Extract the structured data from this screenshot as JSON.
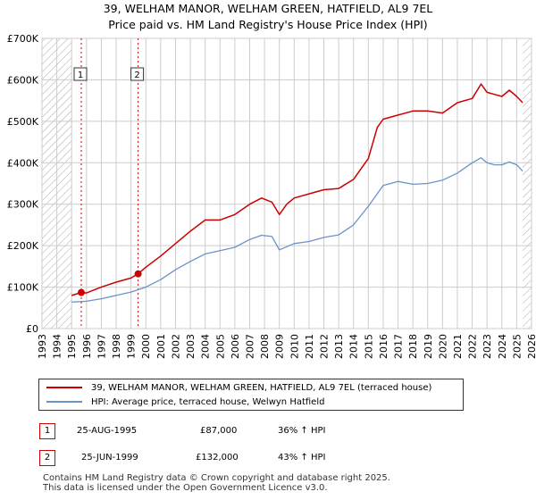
{
  "title_line1": "39, WELHAM MANOR, WELHAM GREEN, HATFIELD, AL9 7EL",
  "title_line2": "Price paid vs. HM Land Registry's House Price Index (HPI)",
  "colors": {
    "price": "#cc0000",
    "hpi": "#6a93c8",
    "grid": "#cccccc",
    "hatch": "#aaaaaa"
  },
  "legend": {
    "price_label": "39, WELHAM MANOR, WELHAM GREEN, HATFIELD, AL9 7EL (terraced house)",
    "hpi_label": "HPI: Average price, terraced house, Welwyn Hatfield"
  },
  "transactions": [
    {
      "num": "1",
      "date": "25-AUG-1995",
      "price": "£87,000",
      "hpi_change": "36% ↑ HPI"
    },
    {
      "num": "2",
      "date": "25-JUN-1999",
      "price": "£132,000",
      "hpi_change": "43% ↑ HPI"
    }
  ],
  "footer_line1": "Contains HM Land Registry data © Crown copyright and database right 2025.",
  "footer_line2": "This data is licensed under the Open Government Licence v3.0.",
  "chart_data": {
    "type": "line",
    "title": "39, WELHAM MANOR, WELHAM GREEN, HATFIELD, AL9 7EL — Price paid vs. HM Land Registry's House Price Index (HPI)",
    "xlabel": "",
    "ylabel": "",
    "xlim": [
      1993,
      2026
    ],
    "ylim": [
      0,
      700000
    ],
    "x_ticks": [
      1993,
      1994,
      1995,
      1996,
      1997,
      1998,
      1999,
      2000,
      2001,
      2002,
      2003,
      2004,
      2005,
      2006,
      2007,
      2008,
      2009,
      2010,
      2011,
      2012,
      2013,
      2014,
      2015,
      2016,
      2017,
      2018,
      2019,
      2020,
      2021,
      2022,
      2023,
      2024,
      2025,
      2026
    ],
    "y_ticks": [
      0,
      100000,
      200000,
      300000,
      400000,
      500000,
      600000,
      700000
    ],
    "y_tick_labels": [
      "£0",
      "£100K",
      "£200K",
      "£300K",
      "£400K",
      "£500K",
      "£600K",
      "£700K"
    ],
    "data_start": 1995.0,
    "data_end": 2025.4,
    "markers": [
      {
        "label": "1",
        "x": 1995.65,
        "y": 87000
      },
      {
        "label": "2",
        "x": 1999.48,
        "y": 132000
      }
    ],
    "series": [
      {
        "name": "39, WELHAM MANOR, WELHAM GREEN, HATFIELD, AL9 7EL (terraced house)",
        "x": [
          1995.0,
          1995.65,
          1996.0,
          1997.0,
          1998.0,
          1999.0,
          1999.48,
          2000.0,
          2001.0,
          2002.0,
          2003.0,
          2004.0,
          2005.0,
          2006.0,
          2007.0,
          2007.8,
          2008.5,
          2009.0,
          2009.5,
          2010.0,
          2011.0,
          2012.0,
          2013.0,
          2014.0,
          2015.0,
          2015.6,
          2016.0,
          2017.0,
          2018.0,
          2019.0,
          2020.0,
          2021.0,
          2022.0,
          2022.6,
          2023.0,
          2023.5,
          2024.0,
          2024.5,
          2025.0,
          2025.4
        ],
        "y": [
          80000,
          87000,
          86000,
          100000,
          112000,
          122000,
          132000,
          148000,
          175000,
          205000,
          235000,
          262000,
          262000,
          275000,
          300000,
          315000,
          305000,
          275000,
          300000,
          315000,
          325000,
          335000,
          338000,
          360000,
          410000,
          485000,
          505000,
          515000,
          525000,
          525000,
          520000,
          545000,
          555000,
          590000,
          570000,
          565000,
          560000,
          575000,
          560000,
          545000
        ]
      },
      {
        "name": "HPI: Average price, terraced house, Welwyn Hatfield",
        "x": [
          1995.0,
          1996.0,
          1997.0,
          1998.0,
          1999.0,
          2000.0,
          2001.0,
          2002.0,
          2003.0,
          2004.0,
          2005.0,
          2006.0,
          2007.0,
          2007.8,
          2008.5,
          2009.0,
          2010.0,
          2011.0,
          2012.0,
          2013.0,
          2014.0,
          2015.0,
          2016.0,
          2017.0,
          2018.0,
          2019.0,
          2020.0,
          2021.0,
          2022.0,
          2022.6,
          2023.0,
          2023.5,
          2024.0,
          2024.5,
          2025.0,
          2025.4
        ],
        "y": [
          64000,
          66000,
          72000,
          80000,
          88000,
          100000,
          118000,
          142000,
          162000,
          180000,
          188000,
          196000,
          215000,
          225000,
          222000,
          190000,
          205000,
          210000,
          220000,
          226000,
          250000,
          295000,
          345000,
          355000,
          348000,
          350000,
          358000,
          375000,
          400000,
          412000,
          400000,
          395000,
          395000,
          402000,
          395000,
          380000
        ]
      }
    ]
  }
}
